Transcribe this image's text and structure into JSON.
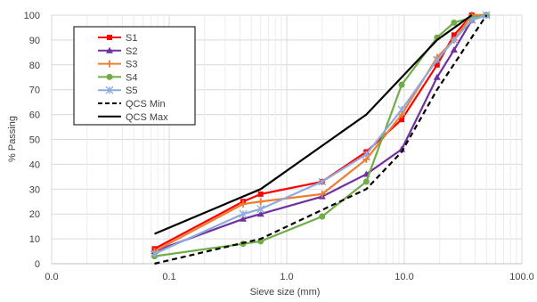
{
  "chart_data": {
    "type": "line",
    "xscale": "log",
    "xlabel": "Sieve size (mm)",
    "ylabel": "% Passing",
    "xlim": [
      0.01,
      100
    ],
    "ylim": [
      0,
      100
    ],
    "x_ticks": [
      "0.0",
      "0.1",
      "1.0",
      "10.0",
      "100.0"
    ],
    "y_ticks": [
      0,
      10,
      20,
      30,
      40,
      50,
      60,
      70,
      80,
      90,
      100
    ],
    "grid": "both",
    "legend_position": "top-left",
    "x": [
      0.075,
      0.425,
      0.6,
      2.0,
      4.75,
      9.5,
      19.0,
      26.5,
      37.5,
      50.0
    ],
    "series": [
      {
        "name": "S1",
        "color": "#ff0000",
        "marker": "square",
        "values": [
          6,
          25,
          28,
          33,
          45,
          58,
          80,
          92,
          100,
          100
        ]
      },
      {
        "name": "S2",
        "color": "#7030a0",
        "marker": "triangle",
        "values": [
          5,
          18,
          20,
          27,
          36,
          46,
          75,
          86,
          98,
          100
        ]
      },
      {
        "name": "S3",
        "color": "#ed7d31",
        "marker": "cross",
        "values": [
          5,
          24,
          25,
          28,
          42,
          60,
          83,
          90,
          100,
          100
        ]
      },
      {
        "name": "S4",
        "color": "#70ad47",
        "marker": "circle",
        "values": [
          3,
          8,
          9,
          19,
          33,
          72,
          91,
          97,
          99,
          100
        ]
      },
      {
        "name": "S5",
        "color": "#8faadc",
        "marker": "star",
        "values": [
          4,
          20,
          22,
          33,
          44,
          62,
          82,
          90,
          98,
          100
        ]
      },
      {
        "name": "QCS Min",
        "color": "#000000",
        "dashed": true,
        "marker": "none",
        "x": [
          0.075,
          0.6,
          4.75,
          9.5,
          19.0,
          50.0
        ],
        "values": [
          0,
          10,
          30,
          45,
          70,
          100
        ]
      },
      {
        "name": "QCS Max",
        "color": "#000000",
        "dashed": false,
        "marker": "none",
        "x": [
          0.075,
          0.6,
          4.75,
          9.5,
          19.0,
          37.5
        ],
        "values": [
          12,
          30,
          60,
          75,
          90,
          100
        ]
      }
    ]
  }
}
